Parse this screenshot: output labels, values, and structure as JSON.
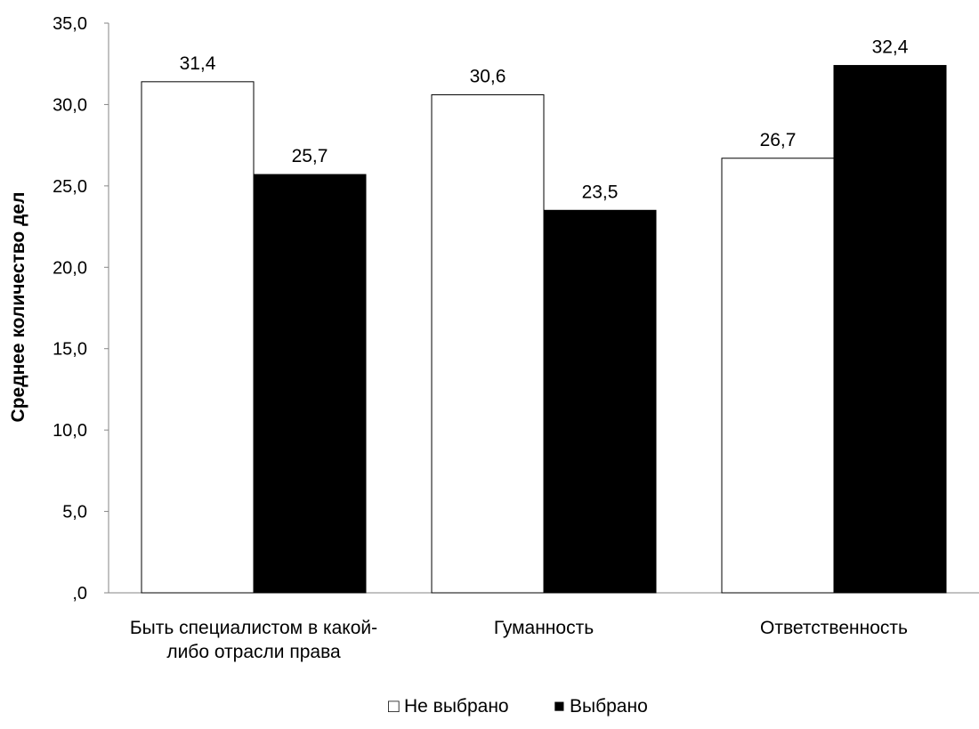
{
  "chart_data": {
    "type": "bar",
    "ylabel": "Среднее количество дел",
    "xlabel": "",
    "ylim": [
      0,
      35
    ],
    "y_ticks": [
      ",0",
      "5,0",
      "10,0",
      "15,0",
      "20,0",
      "25,0",
      "30,0",
      "35,0"
    ],
    "y_tick_values": [
      0,
      5,
      10,
      15,
      20,
      25,
      30,
      35
    ],
    "categories": [
      [
        "Быть специалистом в какой-",
        "либо отрасли права"
      ],
      [
        "Гуманность"
      ],
      [
        "Ответственность"
      ]
    ],
    "series": [
      {
        "name": "Не выбрано",
        "values": [
          31.4,
          30.6,
          26.7
        ],
        "labels": [
          "31,4",
          "30,6",
          "26,7"
        ],
        "color": "#ffffff",
        "stroke": "#000000"
      },
      {
        "name": "Выбрано",
        "values": [
          25.7,
          23.5,
          32.4
        ],
        "labels": [
          "25,7",
          "23,5",
          "32,4"
        ],
        "color": "#000000",
        "stroke": "#000000"
      }
    ],
    "grid": false,
    "legend_position": "bottom-center",
    "legend_markers": [
      "□",
      "■"
    ]
  }
}
